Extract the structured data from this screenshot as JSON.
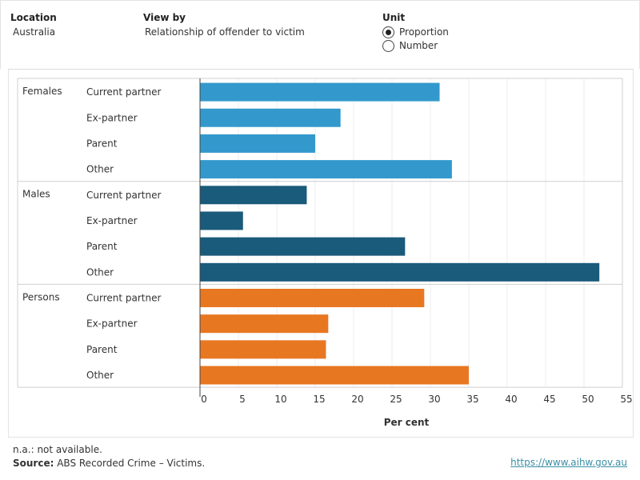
{
  "controls": {
    "location_label": "Location",
    "location_value": "Australia",
    "viewby_label": "View by",
    "viewby_value": "Relationship of offender to victim",
    "unit_label": "Unit",
    "unit_options": [
      {
        "label": "Proportion",
        "selected": true
      },
      {
        "label": "Number",
        "selected": false
      }
    ]
  },
  "chart_data": {
    "type": "bar",
    "orientation": "horizontal",
    "groups": [
      {
        "name": "Females",
        "color": "#3399cc",
        "categories": [
          "Current partner",
          "Ex-partner",
          "Parent",
          "Other"
        ],
        "values": [
          31.2,
          18.3,
          15.0,
          32.8
        ]
      },
      {
        "name": "Males",
        "color": "#1a5a7a",
        "categories": [
          "Current partner",
          "Ex-partner",
          "Parent",
          "Other"
        ],
        "values": [
          13.9,
          5.6,
          26.7,
          52.0
        ]
      },
      {
        "name": "Persons",
        "color": "#e87722",
        "categories": [
          "Current partner",
          "Ex-partner",
          "Parent",
          "Other"
        ],
        "values": [
          29.2,
          16.7,
          16.4,
          35.0
        ]
      }
    ],
    "xlim": [
      0,
      55
    ],
    "xticks": [
      0,
      5,
      10,
      15,
      20,
      25,
      30,
      35,
      40,
      45,
      50,
      55
    ],
    "xlabel": "Per cent",
    "grid": true
  },
  "footer": {
    "note": "n.a.: not available.",
    "source_label": "Source:",
    "source_text": " ABS Recorded Crime – Victims.",
    "link": "https://www.aihw.gov.au"
  }
}
